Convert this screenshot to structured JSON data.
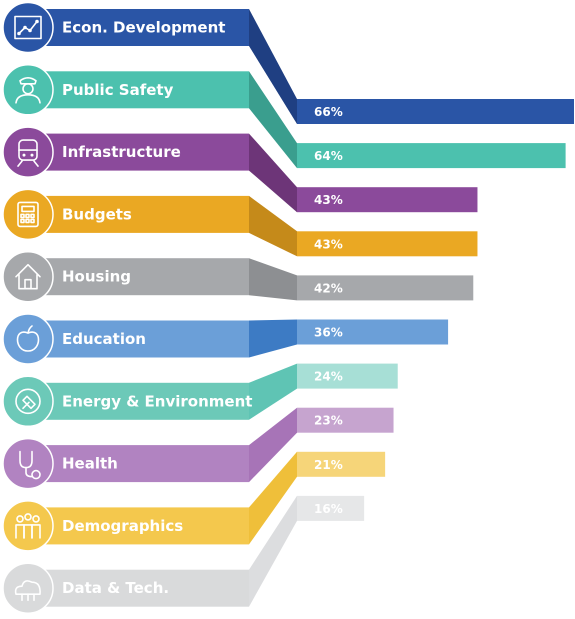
{
  "chart_data": {
    "type": "bar",
    "orientation": "horizontal",
    "title": "",
    "xlabel": "",
    "ylabel": "",
    "xlim": [
      0,
      66
    ],
    "grid": false,
    "legend": "none",
    "categories": [
      "Econ. Development",
      "Public Safety",
      "Infrastructure",
      "Budgets",
      "Housing",
      "Education",
      "Energy & Environment",
      "Health",
      "Demographics",
      "Data & Tech."
    ],
    "values": [
      66,
      64,
      43,
      43,
      42,
      36,
      24,
      23,
      21,
      16
    ],
    "value_labels": [
      "66%",
      "64%",
      "43%",
      "43%",
      "42%",
      "36%",
      "24%",
      "23%",
      "21%",
      "16%"
    ],
    "colors": [
      "#2a55a6",
      "#4cc1ae",
      "#8b4a9b",
      "#eaa823",
      "#a6a8ab",
      "#6b9fd8",
      "#a7dfd6",
      "#c6a4cf",
      "#f6d579",
      "#e6e7e8"
    ],
    "band_colors": [
      "#2a55a6",
      "#4cc1ae",
      "#8b4a9b",
      "#eaa823",
      "#a6a8ab",
      "#6b9fd8",
      "#6cc9b8",
      "#b183c1",
      "#f4c84d",
      "#d9dadb"
    ],
    "connector_colors": [
      "#1f3f82",
      "#3a9e8e",
      "#6d3578",
      "#c58a1a",
      "#8d8f92",
      "#3d7bc4",
      "#5fc4b4",
      "#a774b7",
      "#efbf3a",
      "#dcdddf"
    ],
    "icons": [
      "line-chart-icon",
      "police-officer-icon",
      "train-icon",
      "calculator-icon",
      "house-icon",
      "apple-icon",
      "plug-icon",
      "stethoscope-icon",
      "people-group-icon",
      "cloud-network-icon"
    ]
  }
}
